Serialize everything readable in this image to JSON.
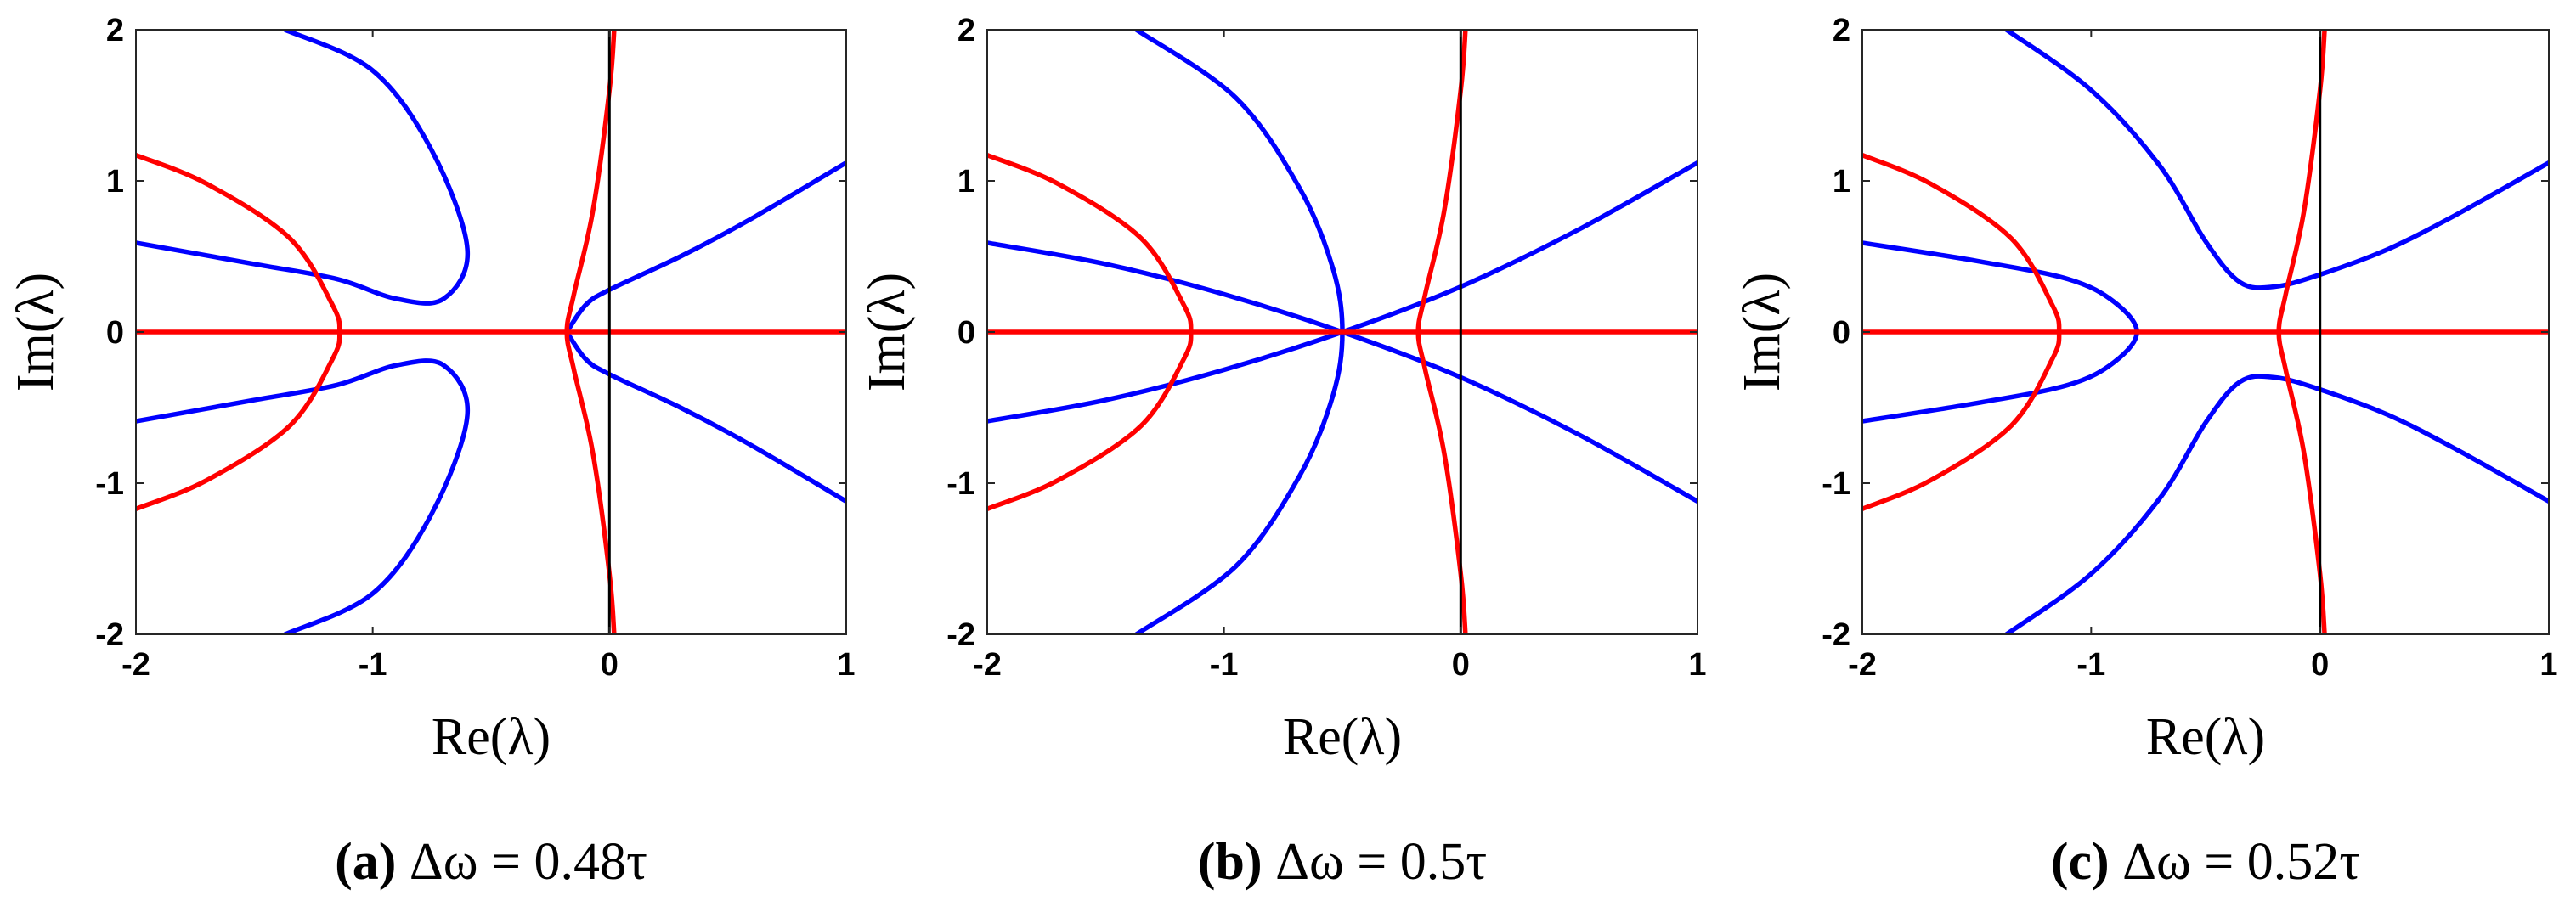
{
  "chart_data": [
    {
      "type": "line",
      "caption": {
        "letter": "(a)",
        "text": "Δω = 0.48τ"
      },
      "xlabel": "Re(λ)",
      "ylabel": "Im(λ)",
      "xlim": [
        -2,
        1
      ],
      "ylim": [
        -2,
        2
      ],
      "xticks": [
        "-2",
        "-1",
        "0",
        "1"
      ],
      "yticks": [
        "-2",
        "-1",
        "0",
        "1",
        "2"
      ],
      "series": [
        {
          "color": "#0000ff",
          "points": [
            [
              -1.37,
              2.0
            ],
            [
              -1.0,
              1.73
            ],
            [
              -0.75,
              1.2
            ],
            [
              -0.6,
              0.55
            ],
            [
              -0.7,
              0.22
            ],
            [
              -0.9,
              0.22
            ],
            [
              -1.15,
              0.35
            ],
            [
              -1.5,
              0.45
            ],
            [
              -2.0,
              0.59
            ]
          ]
        },
        {
          "color": "#0000ff",
          "points": [
            [
              -1.37,
              -2.0
            ],
            [
              -1.0,
              -1.73
            ],
            [
              -0.75,
              -1.2
            ],
            [
              -0.6,
              -0.55
            ],
            [
              -0.7,
              -0.22
            ],
            [
              -0.9,
              -0.22
            ],
            [
              -1.15,
              -0.35
            ],
            [
              -1.5,
              -0.45
            ],
            [
              -2.0,
              -0.59
            ]
          ]
        },
        {
          "color": "#0000ff",
          "points": [
            [
              -0.18,
              0.0
            ],
            [
              -0.1,
              0.18
            ],
            [
              0.0,
              0.28
            ],
            [
              0.3,
              0.5
            ],
            [
              0.6,
              0.75
            ],
            [
              1.0,
              1.12
            ]
          ]
        },
        {
          "color": "#0000ff",
          "points": [
            [
              -0.18,
              0.0
            ],
            [
              -0.1,
              -0.18
            ],
            [
              0.0,
              -0.28
            ],
            [
              0.3,
              -0.5
            ],
            [
              0.6,
              -0.75
            ],
            [
              1.0,
              -1.12
            ]
          ]
        },
        {
          "color": "#ff0000",
          "points": [
            [
              -2.0,
              1.17
            ],
            [
              -1.7,
              0.98
            ],
            [
              -1.35,
              0.62
            ],
            [
              -1.17,
              0.18
            ],
            [
              -1.14,
              0.0
            ],
            [
              -1.17,
              -0.18
            ],
            [
              -1.35,
              -0.62
            ],
            [
              -1.7,
              -0.98
            ],
            [
              -2.0,
              -1.17
            ]
          ]
        },
        {
          "color": "#ff0000",
          "points": [
            [
              0.02,
              2.0
            ],
            [
              0.0,
              1.6
            ],
            [
              -0.07,
              0.8
            ],
            [
              -0.15,
              0.25
            ],
            [
              -0.18,
              0.0
            ],
            [
              -0.15,
              -0.25
            ],
            [
              -0.07,
              -0.8
            ],
            [
              0.0,
              -1.6
            ],
            [
              0.02,
              -2.0
            ]
          ]
        },
        {
          "color": "#ff0000",
          "points": [
            [
              -2.0,
              0.0
            ],
            [
              1.0,
              0.0
            ]
          ]
        },
        {
          "color": "#000000",
          "points": [
            [
              0.0,
              -2.0
            ],
            [
              0.0,
              2.0
            ]
          ]
        }
      ]
    },
    {
      "type": "line",
      "caption": {
        "letter": "(b)",
        "text": "Δω = 0.5τ"
      },
      "xlabel": "Re(λ)",
      "ylabel": "Im(λ)",
      "xlim": [
        -2,
        1
      ],
      "ylim": [
        -2,
        2
      ],
      "xticks": [
        "-2",
        "-1",
        "0",
        "1"
      ],
      "yticks": [
        "-2",
        "-1",
        "0",
        "1",
        "2"
      ],
      "series": [
        {
          "color": "#0000ff",
          "points": [
            [
              -1.37,
              2.0
            ],
            [
              -0.95,
              1.55
            ],
            [
              -0.68,
              0.95
            ],
            [
              -0.54,
              0.42
            ],
            [
              -0.5,
              0.0
            ],
            [
              -0.54,
              -0.42
            ],
            [
              -0.68,
              -0.95
            ],
            [
              -0.95,
              -1.55
            ],
            [
              -1.37,
              -2.0
            ]
          ]
        },
        {
          "color": "#0000ff",
          "points": [
            [
              -2.0,
              0.59
            ],
            [
              -1.5,
              0.45
            ],
            [
              -1.0,
              0.25
            ],
            [
              -0.5,
              0.0
            ],
            [
              0.0,
              -0.3
            ],
            [
              0.5,
              -0.68
            ],
            [
              1.0,
              -1.12
            ]
          ]
        },
        {
          "color": "#0000ff",
          "points": [
            [
              -2.0,
              -0.59
            ],
            [
              -1.5,
              -0.45
            ],
            [
              -1.0,
              -0.25
            ],
            [
              -0.5,
              0.0
            ],
            [
              0.0,
              0.3
            ],
            [
              0.5,
              0.68
            ],
            [
              1.0,
              1.12
            ]
          ]
        },
        {
          "color": "#ff0000",
          "points": [
            [
              -2.0,
              1.17
            ],
            [
              -1.7,
              0.98
            ],
            [
              -1.35,
              0.62
            ],
            [
              -1.17,
              0.18
            ],
            [
              -1.14,
              0.0
            ],
            [
              -1.17,
              -0.18
            ],
            [
              -1.35,
              -0.62
            ],
            [
              -1.7,
              -0.98
            ],
            [
              -2.0,
              -1.17
            ]
          ]
        },
        {
          "color": "#ff0000",
          "points": [
            [
              0.02,
              2.0
            ],
            [
              0.0,
              1.6
            ],
            [
              -0.07,
              0.8
            ],
            [
              -0.15,
              0.25
            ],
            [
              -0.18,
              0.0
            ],
            [
              -0.15,
              -0.25
            ],
            [
              -0.07,
              -0.8
            ],
            [
              0.0,
              -1.6
            ],
            [
              0.02,
              -2.0
            ]
          ]
        },
        {
          "color": "#ff0000",
          "points": [
            [
              -2.0,
              0.0
            ],
            [
              1.0,
              0.0
            ]
          ]
        },
        {
          "color": "#000000",
          "points": [
            [
              0.0,
              -2.0
            ],
            [
              0.0,
              2.0
            ]
          ]
        }
      ]
    },
    {
      "type": "line",
      "caption": {
        "letter": "(c)",
        "text": "Δω = 0.52τ"
      },
      "xlabel": "Re(λ)",
      "ylabel": "Im(λ)",
      "xlim": [
        -2,
        1
      ],
      "ylim": [
        -2,
        2
      ],
      "xticks": [
        "-2",
        "-1",
        "0",
        "1"
      ],
      "yticks": [
        "-2",
        "-1",
        "0",
        "1",
        "2"
      ],
      "series": [
        {
          "color": "#0000ff",
          "points": [
            [
              -2.0,
              0.59
            ],
            [
              -1.5,
              0.47
            ],
            [
              -1.1,
              0.35
            ],
            [
              -0.9,
              0.2
            ],
            [
              -0.8,
              0.0
            ],
            [
              -0.9,
              -0.2
            ],
            [
              -1.1,
              -0.35
            ],
            [
              -1.5,
              -0.47
            ],
            [
              -2.0,
              -0.59
            ]
          ]
        },
        {
          "color": "#0000ff",
          "points": [
            [
              -1.37,
              2.0
            ],
            [
              -1.0,
              1.6
            ],
            [
              -0.7,
              1.1
            ],
            [
              -0.5,
              0.6
            ],
            [
              -0.35,
              0.33
            ],
            [
              -0.2,
              0.3
            ],
            [
              0.0,
              0.38
            ],
            [
              0.3,
              0.55
            ],
            [
              0.6,
              0.78
            ],
            [
              1.0,
              1.12
            ]
          ]
        },
        {
          "color": "#0000ff",
          "points": [
            [
              -1.37,
              -2.0
            ],
            [
              -1.0,
              -1.6
            ],
            [
              -0.7,
              -1.1
            ],
            [
              -0.5,
              -0.6
            ],
            [
              -0.35,
              -0.33
            ],
            [
              -0.2,
              -0.3
            ],
            [
              0.0,
              -0.38
            ],
            [
              0.3,
              -0.55
            ],
            [
              0.6,
              -0.78
            ],
            [
              1.0,
              -1.12
            ]
          ]
        },
        {
          "color": "#ff0000",
          "points": [
            [
              -2.0,
              1.17
            ],
            [
              -1.7,
              0.98
            ],
            [
              -1.35,
              0.62
            ],
            [
              -1.17,
              0.18
            ],
            [
              -1.14,
              0.0
            ],
            [
              -1.17,
              -0.18
            ],
            [
              -1.35,
              -0.62
            ],
            [
              -1.7,
              -0.98
            ],
            [
              -2.0,
              -1.17
            ]
          ]
        },
        {
          "color": "#ff0000",
          "points": [
            [
              0.02,
              2.0
            ],
            [
              0.0,
              1.6
            ],
            [
              -0.07,
              0.8
            ],
            [
              -0.15,
              0.25
            ],
            [
              -0.18,
              0.0
            ],
            [
              -0.15,
              -0.25
            ],
            [
              -0.07,
              -0.8
            ],
            [
              0.0,
              -1.6
            ],
            [
              0.02,
              -2.0
            ]
          ]
        },
        {
          "color": "#ff0000",
          "points": [
            [
              -2.0,
              0.0
            ],
            [
              1.0,
              0.0
            ]
          ]
        },
        {
          "color": "#000000",
          "points": [
            [
              0.0,
              -2.0
            ],
            [
              0.0,
              2.0
            ]
          ]
        }
      ]
    }
  ]
}
